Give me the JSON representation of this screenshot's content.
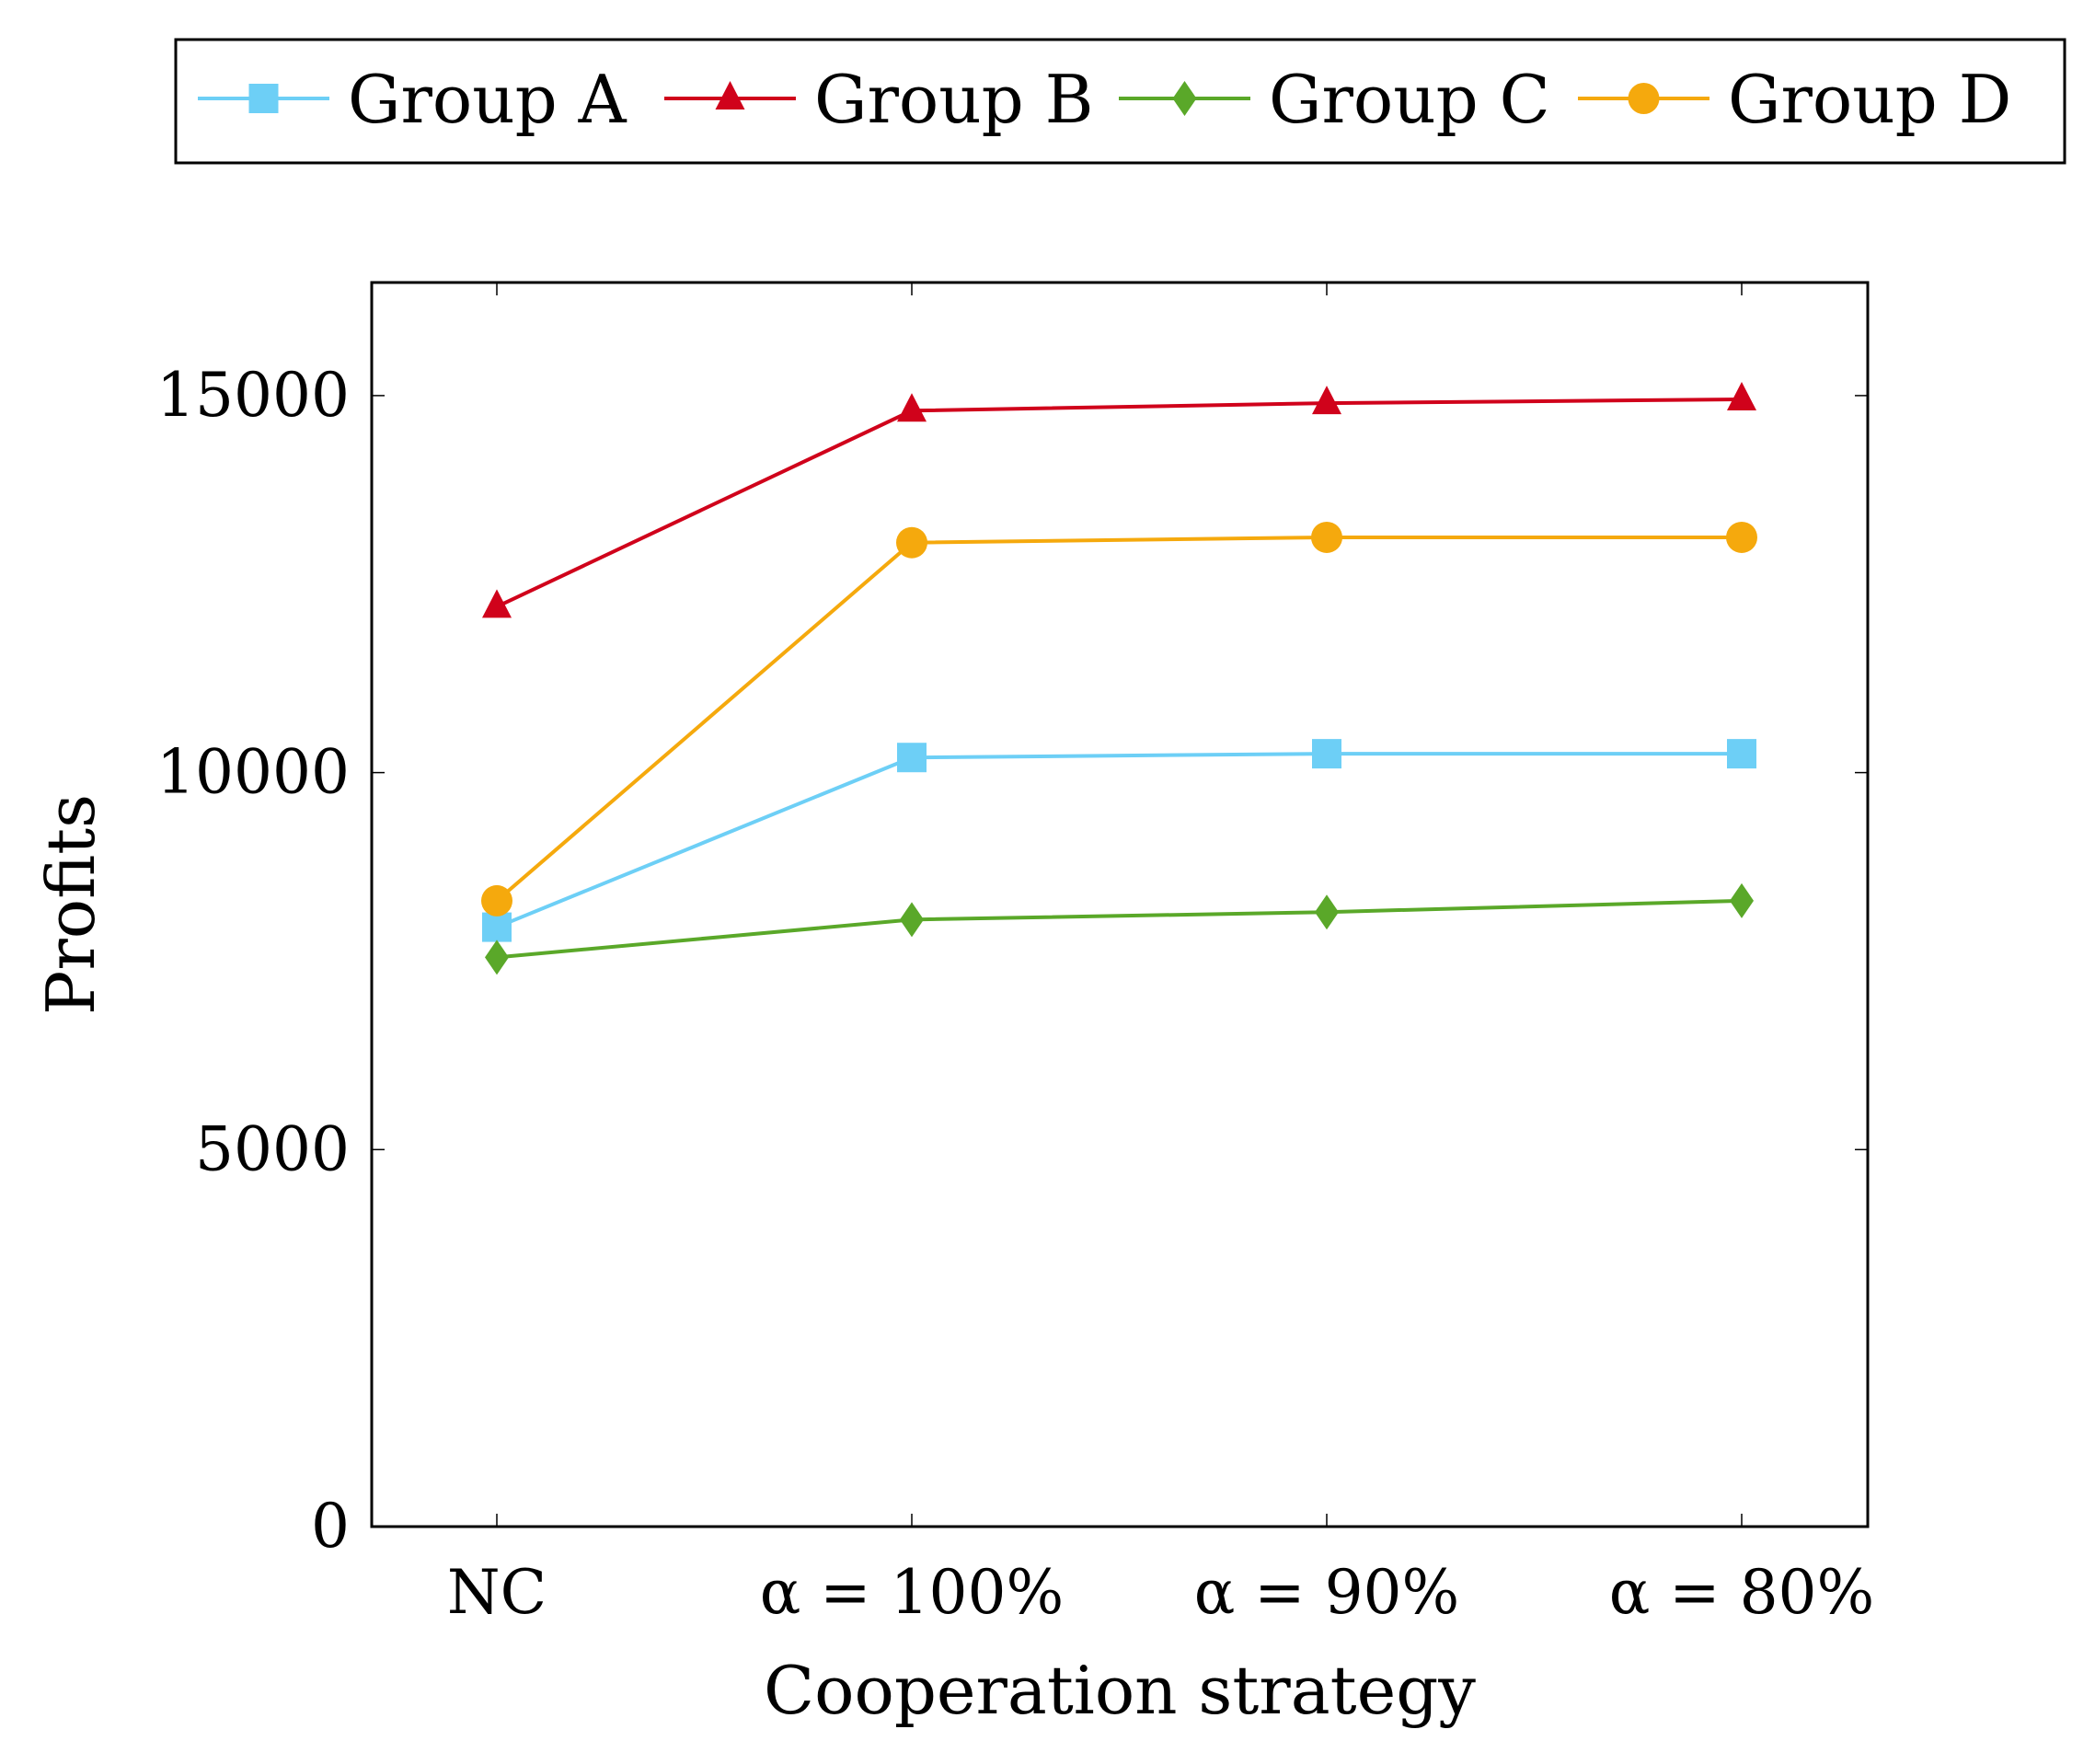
{
  "chart_data": {
    "type": "line",
    "title": "",
    "xlabel": "Cooperation strategy",
    "ylabel": "Profits",
    "categories": [
      "NC",
      "α = 100%",
      "α = 90%",
      "α = 80%"
    ],
    "ylim": [
      0,
      16500
    ],
    "yticks": [
      0,
      5000,
      10000,
      15000
    ],
    "ytick_labels": [
      "0",
      "5000",
      "10000",
      "15000"
    ],
    "grid": false,
    "legend_position": "top",
    "series": [
      {
        "name": "Group A",
        "color": "#6dcff6",
        "marker": "square",
        "values": [
          7950,
          10200,
          10250,
          10250
        ]
      },
      {
        "name": "Group B",
        "color": "#d0021b",
        "marker": "triangle",
        "values": [
          12200,
          14800,
          14900,
          14950
        ]
      },
      {
        "name": "Group C",
        "color": "#5aa829",
        "marker": "diamond",
        "values": [
          7550,
          8050,
          8150,
          8300
        ]
      },
      {
        "name": "Group D",
        "color": "#f5a90d",
        "marker": "circle",
        "values": [
          8300,
          13050,
          13120,
          13120
        ]
      }
    ]
  }
}
